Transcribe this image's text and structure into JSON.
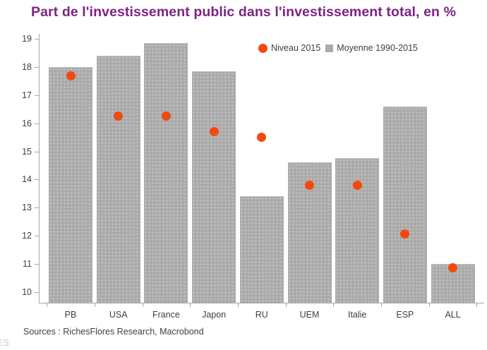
{
  "title": "Part de l'investissement public dans l'investissement total, en %",
  "source_note": "Sources : RichesFlores Research, Macrobond",
  "watermark": "ES",
  "colors": {
    "title": "#7E2285",
    "bar": "#ABABAB",
    "point": "#F3490D",
    "axis": "#A6A6A6",
    "text": "#404040",
    "watermark": "#C8C8C8"
  },
  "legend": {
    "items": [
      {
        "label": "Niveau 2015",
        "swatch": "circle",
        "color": "#F3490D"
      },
      {
        "label": "Moyenne 1990-2015",
        "swatch": "square",
        "color": "#ABABAB"
      }
    ]
  },
  "chart_data": {
    "type": "bar",
    "title": "Part de l'investissement public dans l'investissement total, en %",
    "categories": [
      "PB",
      "USA",
      "France",
      "Japon",
      "RU",
      "UEM",
      "Italie",
      "ESP",
      "ALL"
    ],
    "series": [
      {
        "name": "Moyenne 1990-2015",
        "mark": "bar",
        "color": "#ABABAB",
        "values": [
          18.0,
          18.4,
          18.85,
          17.85,
          13.4,
          14.6,
          14.75,
          16.6,
          11.0
        ]
      },
      {
        "name": "Niveau 2015",
        "mark": "point",
        "color": "#F3490D",
        "values": [
          17.7,
          16.25,
          16.25,
          15.7,
          15.5,
          13.8,
          13.8,
          12.05,
          10.85
        ]
      }
    ],
    "xlabel": "",
    "ylabel": "",
    "yticks": [
      10,
      11,
      12,
      13,
      14,
      15,
      16,
      17,
      18,
      19
    ],
    "ylim": [
      9.6,
      19.2
    ],
    "grid": false,
    "legend_position": "top"
  }
}
